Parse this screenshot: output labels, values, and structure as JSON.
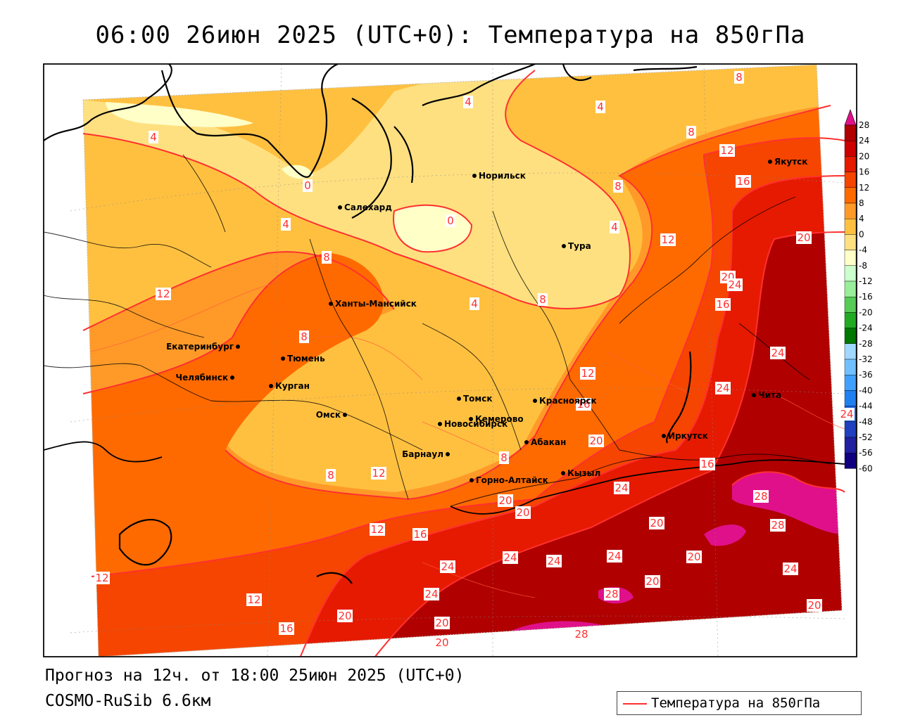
{
  "header": {
    "title": "06:00 26июн 2025 (UTC+0): Температура на 850гПа"
  },
  "footer": {
    "forecast": "Прогноз на 12ч. от 18:00 25июн 2025 (UTC+0)",
    "model": "COSMO-RuSib 6.6км"
  },
  "legend": {
    "line_label": "Температура на 850гПа",
    "line_color": "#ff3030"
  },
  "colorbar": {
    "ticks": [
      28,
      24,
      20,
      16,
      12,
      8,
      4,
      0,
      -4,
      -8,
      -12,
      -16,
      -20,
      -24,
      -28,
      -32,
      -36,
      -40,
      -44,
      -48,
      -52,
      -56,
      -60
    ],
    "colors": [
      "#b00000",
      "#cc0000",
      "#e61a00",
      "#f54500",
      "#ff6a00",
      "#ff9a28",
      "#ffc040",
      "#ffe080",
      "#ffffc8",
      "#ccffcc",
      "#99ee99",
      "#55cc55",
      "#22aa22",
      "#007700",
      "#a0d8ff",
      "#70c0ff",
      "#40a0ff",
      "#2080f0",
      "#2060e0",
      "#2040c0",
      "#2020a0",
      "#100080"
    ],
    "over_color": "#e0108a"
  },
  "cities": [
    {
      "name": "Якутск"
    },
    {
      "name": "Норильск"
    },
    {
      "name": "Салехард"
    },
    {
      "name": "Тура"
    },
    {
      "name": "Ханты-Мансийск"
    },
    {
      "name": "Екатеринбург"
    },
    {
      "name": "Тюмень"
    },
    {
      "name": "Челябинск"
    },
    {
      "name": "Курган"
    },
    {
      "name": "Омск"
    },
    {
      "name": "Новосибирск"
    },
    {
      "name": "Томск"
    },
    {
      "name": "Кемерово"
    },
    {
      "name": "Красноярск"
    },
    {
      "name": "Абакан"
    },
    {
      "name": "Барнаул"
    },
    {
      "name": "Горно-Алтайск"
    },
    {
      "name": "Кызыл"
    },
    {
      "name": "Иркутск"
    },
    {
      "name": "Чита"
    }
  ],
  "contour_labels": [
    "8",
    "4",
    "4",
    "4",
    "8",
    "12",
    "16",
    "20",
    "0",
    "0",
    "4",
    "8",
    "8",
    "12",
    "4",
    "4",
    "8",
    "12",
    "20",
    "24",
    "16",
    "12",
    "16",
    "24",
    "24",
    "8",
    "8",
    "8",
    "20",
    "16",
    "12",
    "20",
    "24",
    "24",
    "28",
    "28",
    "12",
    "16",
    "20",
    "24",
    "24",
    "24",
    "24",
    "20",
    "24",
    "12",
    "12",
    "16",
    "20",
    "24",
    "20",
    "28",
    "28",
    "20",
    "20",
    "20",
    "20"
  ]
}
